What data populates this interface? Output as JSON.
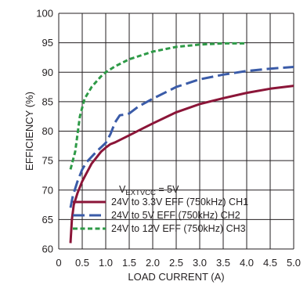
{
  "chart_data": {
    "type": "line",
    "title": "",
    "xlabel": "LOAD CURRENT (A)",
    "ylabel": "EFFICIENCY (%)",
    "xlim": [
      0,
      5.0
    ],
    "ylim": [
      60,
      100
    ],
    "x_ticks": [
      "0",
      "0.5",
      "1.0",
      "1.5",
      "2.0",
      "2.5",
      "3.0",
      "3.5",
      "4.0",
      "4.5",
      "5.0"
    ],
    "y_ticks": [
      "60",
      "65",
      "70",
      "75",
      "80",
      "85",
      "90",
      "95",
      "100"
    ],
    "grid": true,
    "legend_position": "bottom-right",
    "legend_header": {
      "main": "V",
      "sub": "EXTVCC",
      "suffix": " = 5V"
    },
    "series": [
      {
        "name": "24V to 3.3V EFF (750kHz) CH1",
        "color": "#8b1538",
        "dash": "solid",
        "points": [
          [
            0.25,
            61
          ],
          [
            0.28,
            65
          ],
          [
            0.32,
            67.5
          ],
          [
            0.4,
            69.5
          ],
          [
            0.5,
            71.5
          ],
          [
            0.6,
            73
          ],
          [
            0.7,
            74.5
          ],
          [
            0.8,
            75.5
          ],
          [
            0.9,
            76.5
          ],
          [
            1.0,
            77.2
          ],
          [
            1.1,
            77.8
          ],
          [
            1.2,
            78.1
          ],
          [
            1.3,
            78.5
          ],
          [
            1.5,
            79.3
          ],
          [
            1.8,
            80.5
          ],
          [
            2.0,
            81.3
          ],
          [
            2.5,
            83.2
          ],
          [
            3.0,
            84.6
          ],
          [
            3.5,
            85.6
          ],
          [
            4.0,
            86.5
          ],
          [
            4.5,
            87.2
          ],
          [
            5.0,
            87.7
          ]
        ]
      },
      {
        "name": "24V to 5V EFF (750kHz) CH2",
        "color": "#3a5ba8",
        "dash": "longdash",
        "points": [
          [
            0.25,
            67
          ],
          [
            0.3,
            69
          ],
          [
            0.4,
            71.5
          ],
          [
            0.5,
            73.5
          ],
          [
            0.6,
            74.8
          ],
          [
            0.8,
            76.5
          ],
          [
            1.0,
            78
          ],
          [
            1.1,
            79.5
          ],
          [
            1.2,
            81.5
          ],
          [
            1.3,
            82.7
          ],
          [
            1.4,
            82.8
          ],
          [
            1.5,
            83
          ],
          [
            1.7,
            84.2
          ],
          [
            2.0,
            85.5
          ],
          [
            2.5,
            87.5
          ],
          [
            3.0,
            88.8
          ],
          [
            3.5,
            89.6
          ],
          [
            4.0,
            90.2
          ],
          [
            4.5,
            90.6
          ],
          [
            5.0,
            90.9
          ]
        ]
      },
      {
        "name": "24V to 12V EFF (750kHz) CH3",
        "color": "#2e9a47",
        "dash": "shortdash",
        "points": [
          [
            0.25,
            73.5
          ],
          [
            0.35,
            76.5
          ],
          [
            0.45,
            82.5
          ],
          [
            0.55,
            85.5
          ],
          [
            0.7,
            87.5
          ],
          [
            0.9,
            89.3
          ],
          [
            1.0,
            90
          ],
          [
            1.2,
            91
          ],
          [
            1.5,
            92.2
          ],
          [
            2.0,
            93.5
          ],
          [
            2.5,
            94.3
          ],
          [
            3.0,
            94.7
          ],
          [
            3.5,
            94.9
          ],
          [
            4.0,
            94.9
          ]
        ]
      }
    ]
  }
}
